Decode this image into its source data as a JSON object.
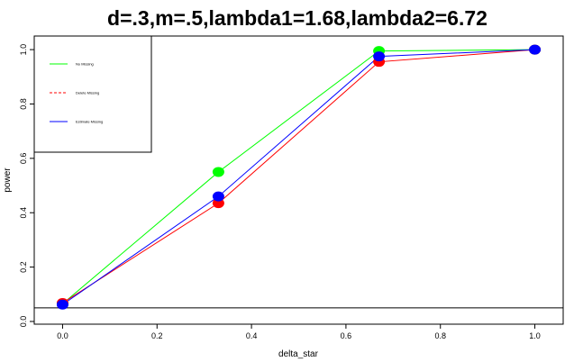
{
  "chart_data": {
    "type": "line",
    "title": "d=.3,m=.5,lambda1=1.68,lambda2=6.72",
    "xlabel": "delta_star",
    "ylabel": "power",
    "xlim": [
      -0.06,
      1.06
    ],
    "ylim": [
      -0.01,
      1.05
    ],
    "xticks": [
      "0.0",
      "0.2",
      "0.4",
      "0.6",
      "0.8",
      "1.0"
    ],
    "yticks": [
      "0.0",
      "0.2",
      "0.4",
      "0.6",
      "0.8",
      "1.0"
    ],
    "x": [
      0,
      0.33,
      0.67,
      1.0
    ],
    "reference_line_y": 0.05,
    "grid": false,
    "legend_position": "top-left",
    "series": [
      {
        "name": "No Missing",
        "values": [
          0.065,
          0.55,
          0.995,
          1.0
        ],
        "color": "#00ff00",
        "dash": "solid"
      },
      {
        "name": "Delete Missing",
        "values": [
          0.068,
          0.435,
          0.955,
          1.0
        ],
        "color": "#ff0000",
        "dash": "dashed"
      },
      {
        "name": "Estimate Missing",
        "values": [
          0.062,
          0.46,
          0.975,
          1.0
        ],
        "color": "#0000ff",
        "dash": "solid"
      }
    ]
  }
}
